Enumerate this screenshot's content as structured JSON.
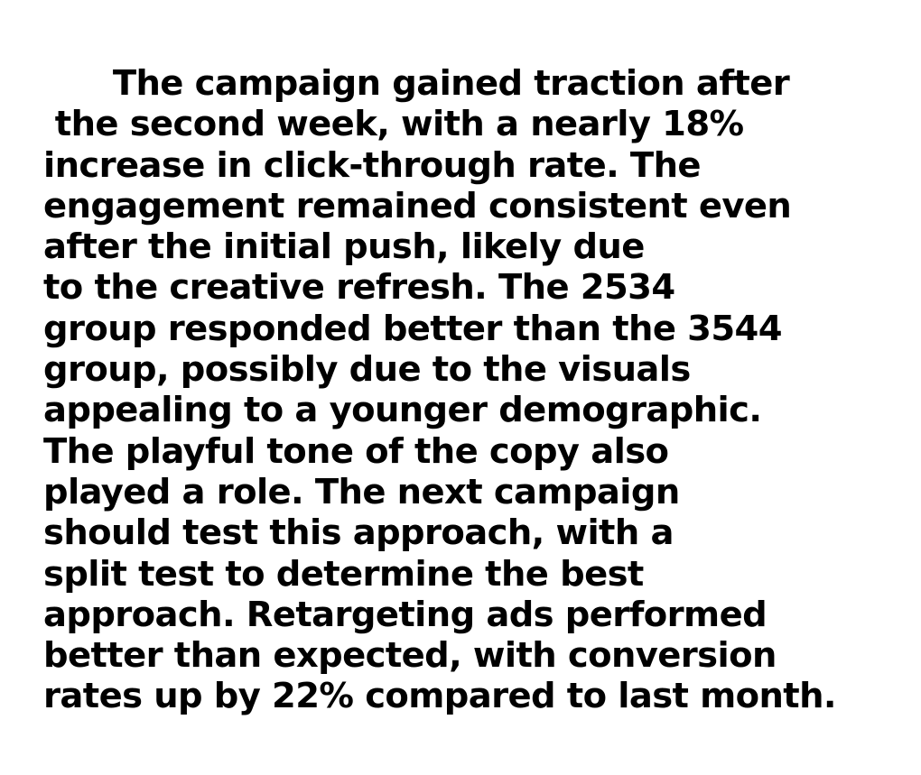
{
  "document": {
    "lines": [
      "      The campaign gained traction after",
      " the second week, with a nearly 18%",
      "increase in click-through rate. The",
      "engagement remained consistent even",
      "after the initial push, likely due",
      "to the creative refresh. The 2534",
      "group responded better than the 3544",
      "group, possibly due to the visuals",
      "appealing to a younger demographic.",
      "The playful tone of the copy also",
      "played a role. The next campaign",
      "should test this approach, with a",
      "split test to determine the best",
      "approach. Retargeting ads performed",
      "better than expected, with conversion",
      "rates up by 22% compared to last month."
    ]
  },
  "colors": {
    "text": "#000000",
    "background": "#ffffff"
  }
}
